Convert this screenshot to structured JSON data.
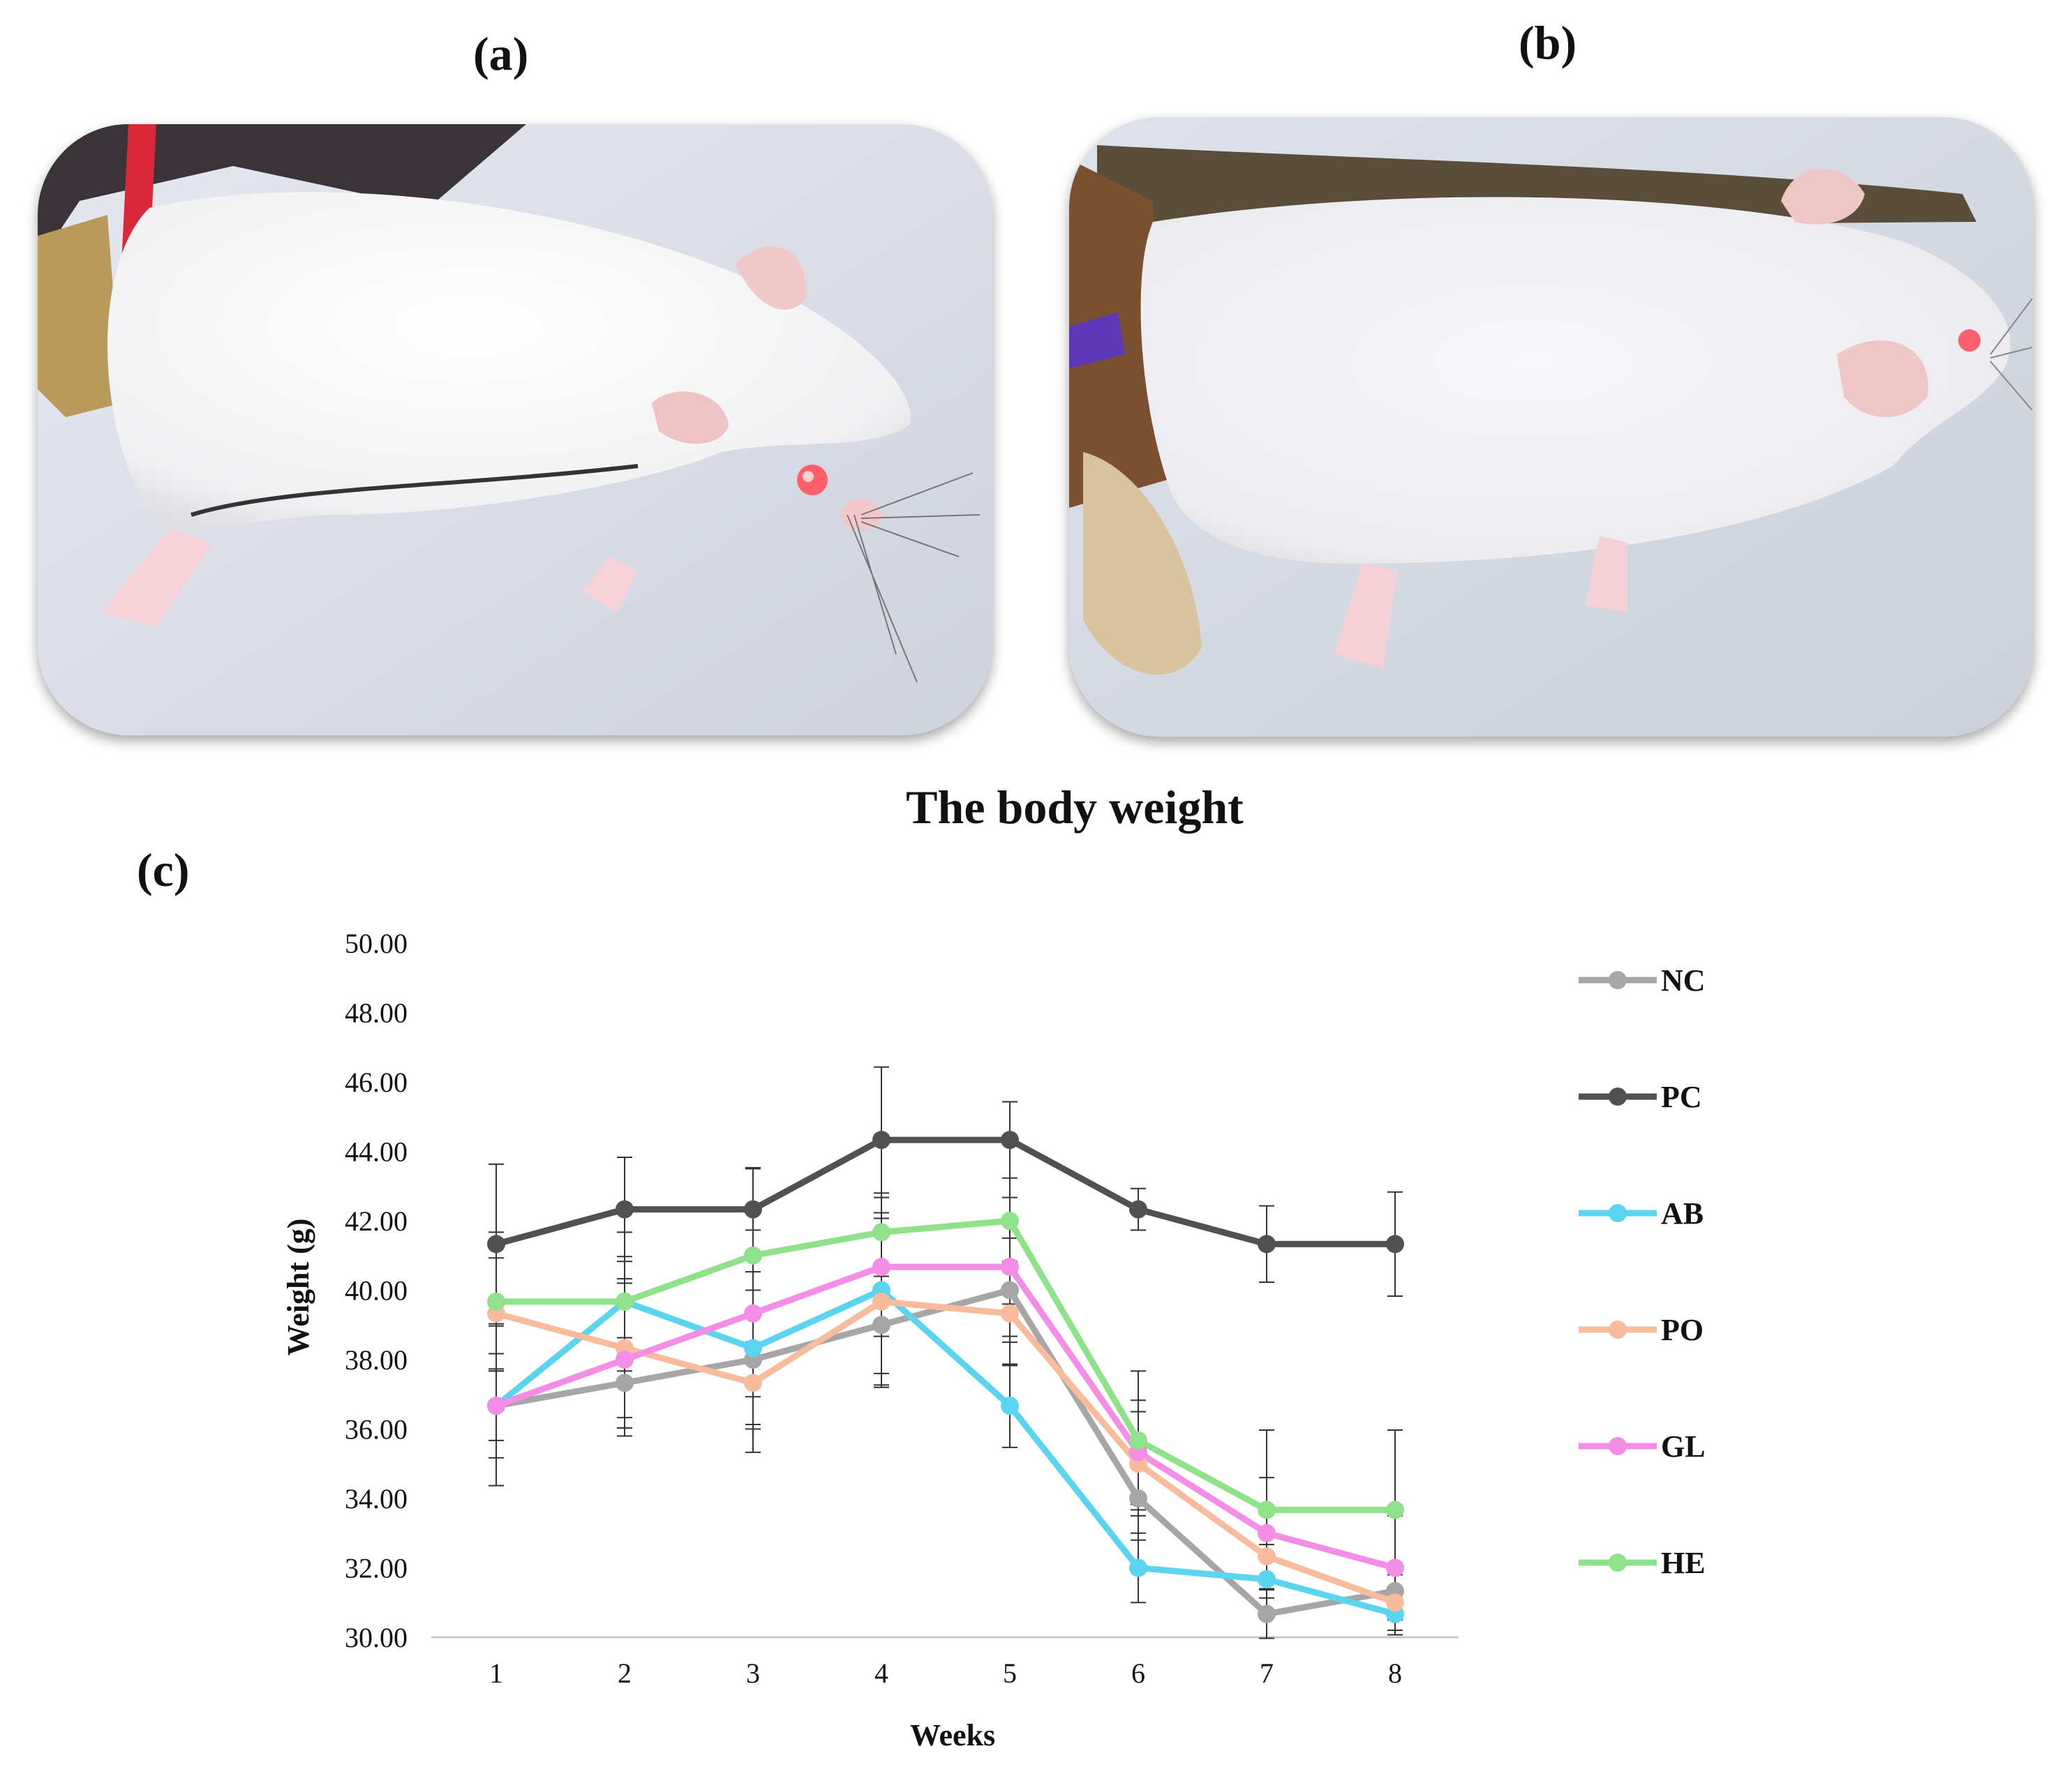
{
  "panels": {
    "a_label": "(a)",
    "b_label": "(b)",
    "c_label": "(c)"
  },
  "photos": {
    "a_icon": "white-rat-photo",
    "b_icon": "white-rat-photo-bloated"
  },
  "chart_data": {
    "type": "line",
    "title": "The body weight",
    "xlabel": "Weeks",
    "ylabel": "Weight (g)",
    "ylim": [
      30,
      50
    ],
    "yticks": [
      "30.00",
      "32.00",
      "34.00",
      "36.00",
      "38.00",
      "40.00",
      "42.00",
      "44.00",
      "46.00",
      "48.00",
      "50.00"
    ],
    "categories": [
      "1",
      "2",
      "3",
      "4",
      "5",
      "6",
      "7",
      "8"
    ],
    "error_bars": true,
    "legend_position": "right",
    "series": [
      {
        "name": "NC",
        "color": "#a6a6a6",
        "values": [
          36.67,
          37.33,
          38.0,
          39.0,
          40.0,
          34.0,
          30.67,
          31.33
        ],
        "errors": [
          1.0,
          1.3,
          2.0,
          1.4,
          1.5,
          1.2,
          0.7,
          0.6
        ]
      },
      {
        "name": "PC",
        "color": "#515151",
        "values": [
          41.33,
          42.33,
          42.33,
          44.33,
          44.33,
          42.33,
          41.33,
          41.33
        ],
        "errors": [
          2.3,
          1.5,
          1.2,
          2.1,
          1.1,
          0.6,
          1.1,
          1.5
        ]
      },
      {
        "name": "AB",
        "color": "#5bd4f0",
        "values": [
          36.67,
          39.67,
          38.33,
          40.0,
          36.67,
          32.0,
          31.67,
          30.67
        ],
        "errors": [
          2.3,
          1.3,
          2.2,
          2.8,
          1.2,
          1.0,
          1.0,
          0.6
        ]
      },
      {
        "name": "PO",
        "color": "#f8bc9c",
        "values": [
          39.33,
          38.33,
          37.33,
          39.67,
          39.33,
          35.0,
          32.33,
          31.0
        ],
        "errors": [
          1.6,
          2.0,
          2.0,
          2.4,
          1.5,
          1.5,
          1.2,
          0.8
        ]
      },
      {
        "name": "GL",
        "color": "#f38de6",
        "values": [
          36.67,
          38.0,
          39.33,
          40.67,
          40.67,
          35.33,
          33.0,
          32.0
        ],
        "errors": [
          1.5,
          2.2,
          2.4,
          2.0,
          2.0,
          1.5,
          1.6,
          1.5
        ]
      },
      {
        "name": "HE",
        "color": "#8fe28a",
        "values": [
          39.67,
          39.67,
          41.0,
          41.67,
          42.0,
          35.67,
          33.67,
          33.67
        ],
        "errors": [
          2.0,
          2.0,
          2.5,
          2.8,
          2.4,
          2.0,
          2.3,
          2.3
        ]
      }
    ]
  }
}
